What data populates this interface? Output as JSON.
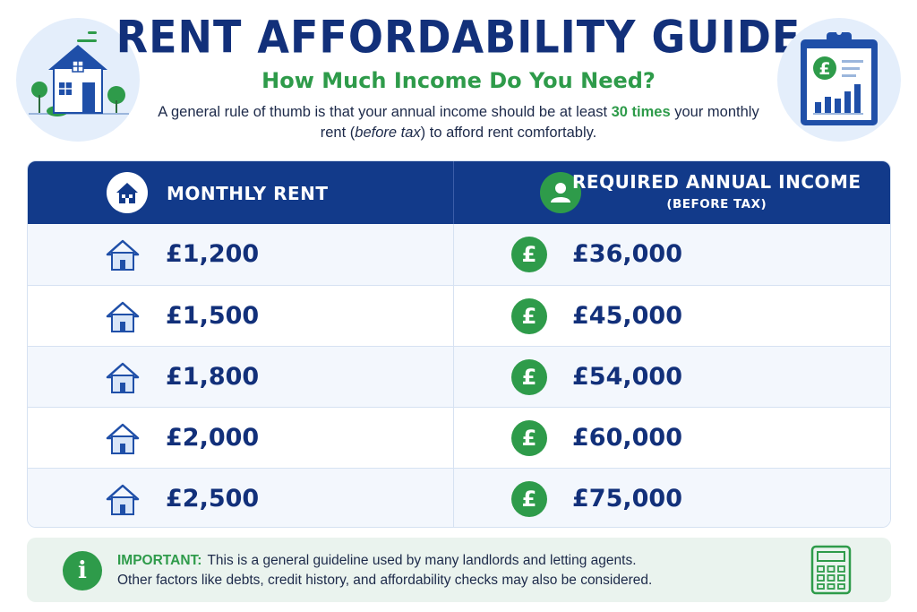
{
  "header": {
    "title": "RENT AFFORDABILITY GUIDE",
    "subtitle": "How Much Income Do You Need?",
    "intro_part1": "A general rule of thumb is that your annual income should be at least ",
    "intro_highlight": "30 times",
    "intro_part2": " your monthly rent (",
    "intro_italic": "before tax",
    "intro_part3": ") to afford rent comfortably."
  },
  "colors": {
    "navy": "#123a8a",
    "green": "#2e9b4a",
    "light_blue": "#e4eefb",
    "note_bg": "#eaf3ee"
  },
  "icons": {
    "left_badge": "house-with-trees-icon",
    "right_badge": "clipboard-chart-pound-icon",
    "header_rent": "house-icon",
    "header_income": "person-icon",
    "row_rent": "house-icon",
    "row_income": "pound-icon",
    "note_info": "info-icon",
    "note_right": "calculator-icon"
  },
  "table": {
    "col_rent": "MONTHLY RENT",
    "col_income": "REQUIRED ANNUAL INCOME",
    "col_income_sub": "(BEFORE TAX)",
    "rows": [
      {
        "rent": "£1,200",
        "income": "£36,000"
      },
      {
        "rent": "£1,500",
        "income": "£45,000"
      },
      {
        "rent": "£1,800",
        "income": "£54,000"
      },
      {
        "rent": "£2,000",
        "income": "£60,000"
      },
      {
        "rent": "£2,500",
        "income": "£75,000"
      }
    ],
    "pound_symbol": "£"
  },
  "note": {
    "label": "IMPORTANT:",
    "line1": "This is a general guideline used by many landlords and letting agents.",
    "line2": "Other factors like debts, credit history, and affordability checks may also be considered.",
    "info_glyph": "i"
  }
}
